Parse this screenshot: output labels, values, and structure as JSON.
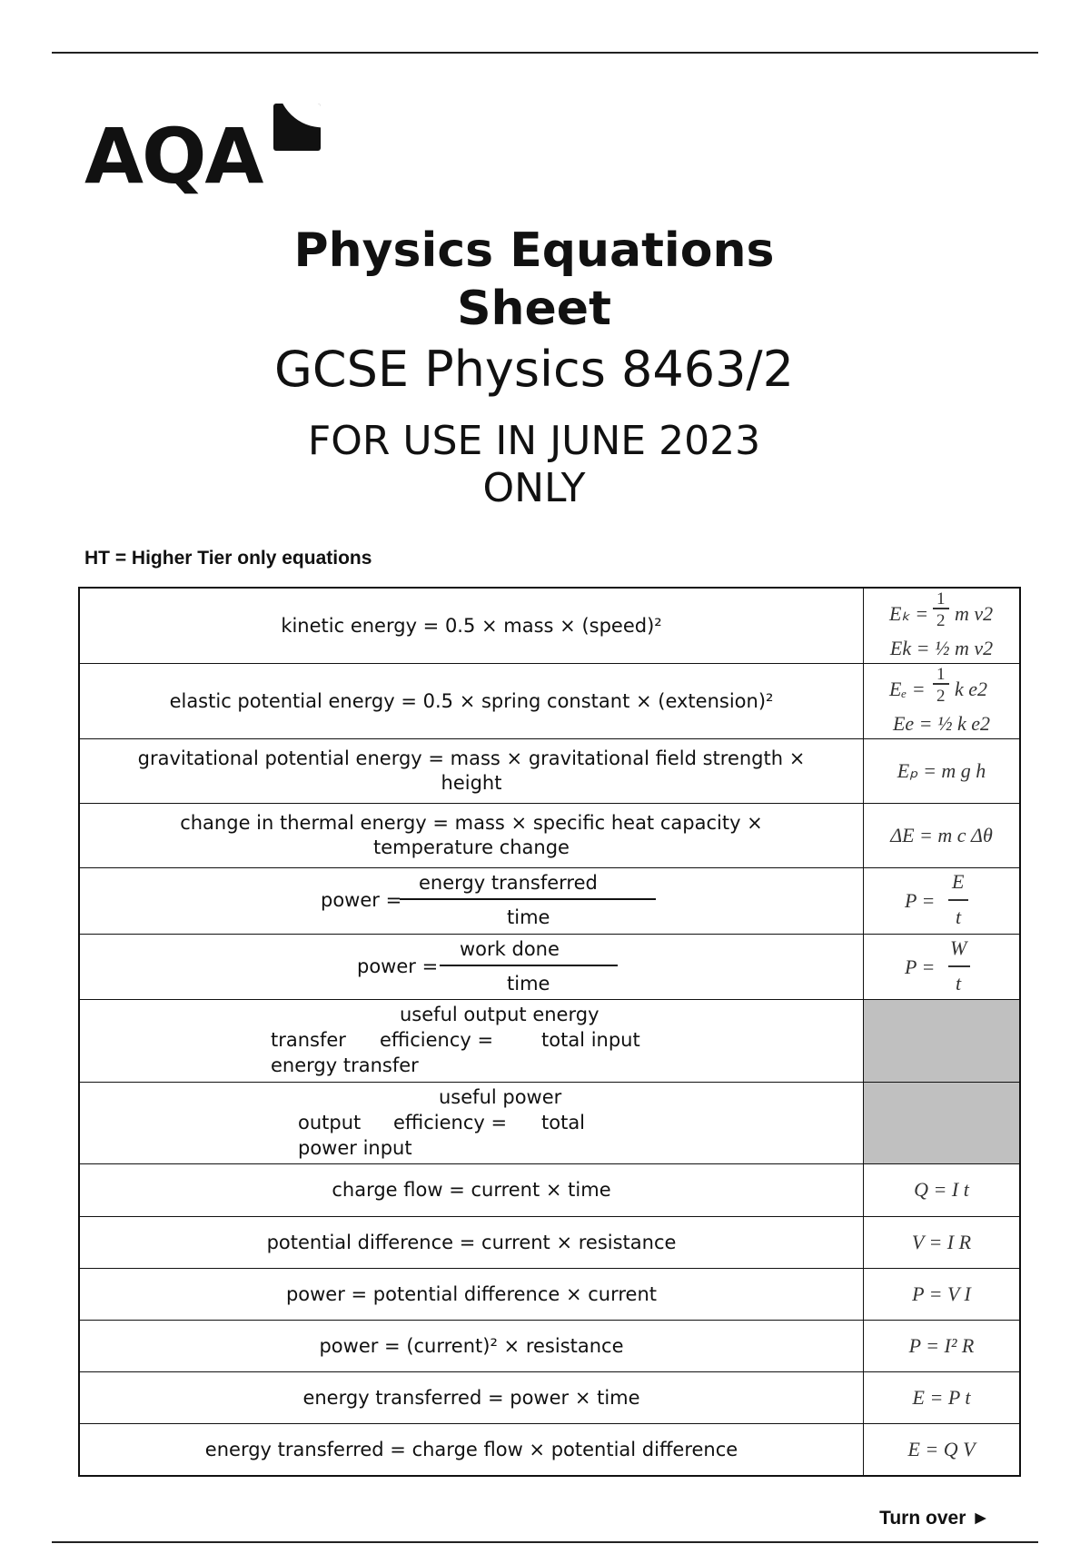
{
  "logo": {
    "text": "AQA"
  },
  "title": {
    "line1": "Physics Equations",
    "line2": "Sheet",
    "subtitle": "GCSE Physics 8463/2",
    "use_line1": "FOR USE IN JUNE 2023",
    "use_line2": "ONLY"
  },
  "ht_note": "HT = Higher Tier only equations",
  "rows": [
    {
      "words": "kinetic energy = 0.5 × mass × (speed)²",
      "symbol": "Ek = ½ m v2",
      "sym_left": "Eₖ =",
      "sym_num": "1",
      "sym_den": "2",
      "sym_right": "m v2"
    },
    {
      "words": "elastic potential energy = 0.5 × spring constant × (extension)²",
      "symbol": "Ee = ½ k e2",
      "sym_left": "Eₑ =",
      "sym_num": "1",
      "sym_den": "2",
      "sym_right": "k e2"
    },
    {
      "words_1": "gravitational potential energy = mass × gravitational field strength ×",
      "words_2": "height",
      "symbol": "Eₚ = m g h"
    },
    {
      "words_1": "change in thermal energy = mass × specific heat capacity ×",
      "words_2": "temperature change",
      "symbol": "ΔE = m c Δθ"
    },
    {
      "left": "power =",
      "num": "energy transferred",
      "den": "time",
      "sym_left": "P =",
      "sym_num": "E",
      "sym_den": "t"
    },
    {
      "left": "power =",
      "num": "work done",
      "den": "time",
      "sym_left": "P =",
      "sym_num": "W",
      "sym_den": "t"
    },
    {
      "a": "useful output energy",
      "b": "efficiency =",
      "c": "transfer",
      "d": "total input",
      "e": "energy transfer"
    },
    {
      "a": "useful power",
      "b": "efficiency =",
      "c": "output",
      "d": "total",
      "e": "power input"
    },
    {
      "words": "charge flow = current × time",
      "symbol": "Q = I t"
    },
    {
      "words": "potential difference = current × resistance",
      "symbol": "V = I R"
    },
    {
      "words": "power = potential difference × current",
      "symbol": "P = V I"
    },
    {
      "words": "power = (current)² × resistance",
      "symbol": "P = I² R"
    },
    {
      "words": "energy transferred = power × time",
      "symbol": "E = P t"
    },
    {
      "words": "energy transferred = charge flow × potential difference",
      "symbol": "E = Q V"
    }
  ],
  "footer": {
    "turn_over": "Turn over ►"
  }
}
